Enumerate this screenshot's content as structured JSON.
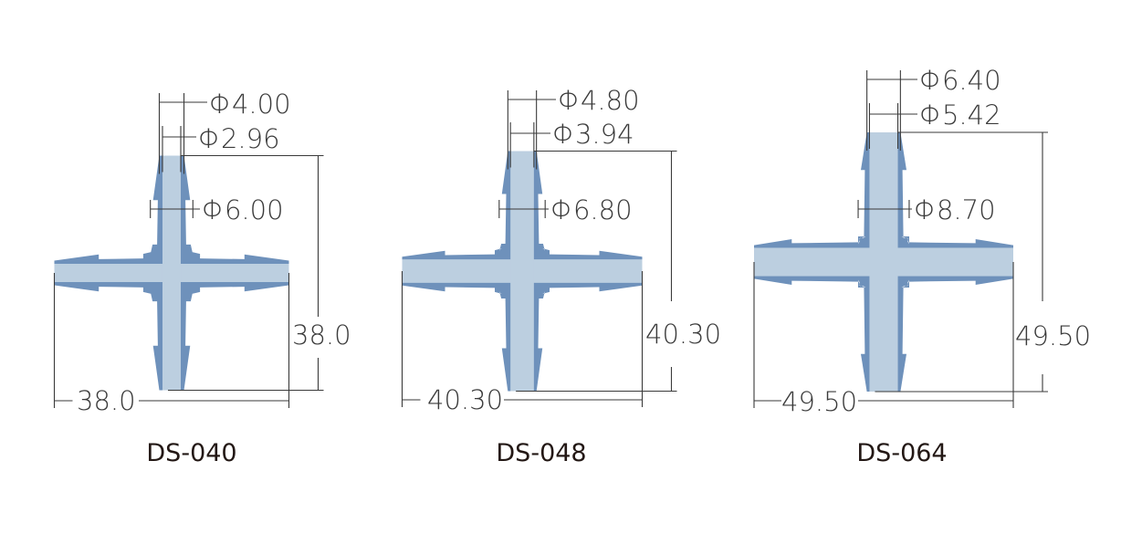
{
  "colors": {
    "body": "#6e91bb",
    "bore": "#bccfe0",
    "line": "#3a3a3a"
  },
  "parts": [
    {
      "model": "DS-040",
      "tip_od": "Φ4.00",
      "bore": "Φ2.96",
      "barb_od": "Φ6.00",
      "height": "38.0",
      "width": "38.0",
      "mm": {
        "tip": 4.0,
        "bore": 2.96,
        "barb": 6.0,
        "size": 38.0
      }
    },
    {
      "model": "DS-048",
      "tip_od": "Φ4.80",
      "bore": "Φ3.94",
      "barb_od": "Φ6.80",
      "height": "40.30",
      "width": "40.30",
      "mm": {
        "tip": 4.8,
        "bore": 3.94,
        "barb": 6.8,
        "size": 40.3
      }
    },
    {
      "model": "DS-064",
      "tip_od": "Φ6.40",
      "bore": "Φ5.42",
      "barb_od": "Φ8.70",
      "height": "49.50",
      "width": "49.50",
      "mm": {
        "tip": 6.4,
        "bore": 5.42,
        "barb": 8.7,
        "size": 49.5
      }
    }
  ]
}
